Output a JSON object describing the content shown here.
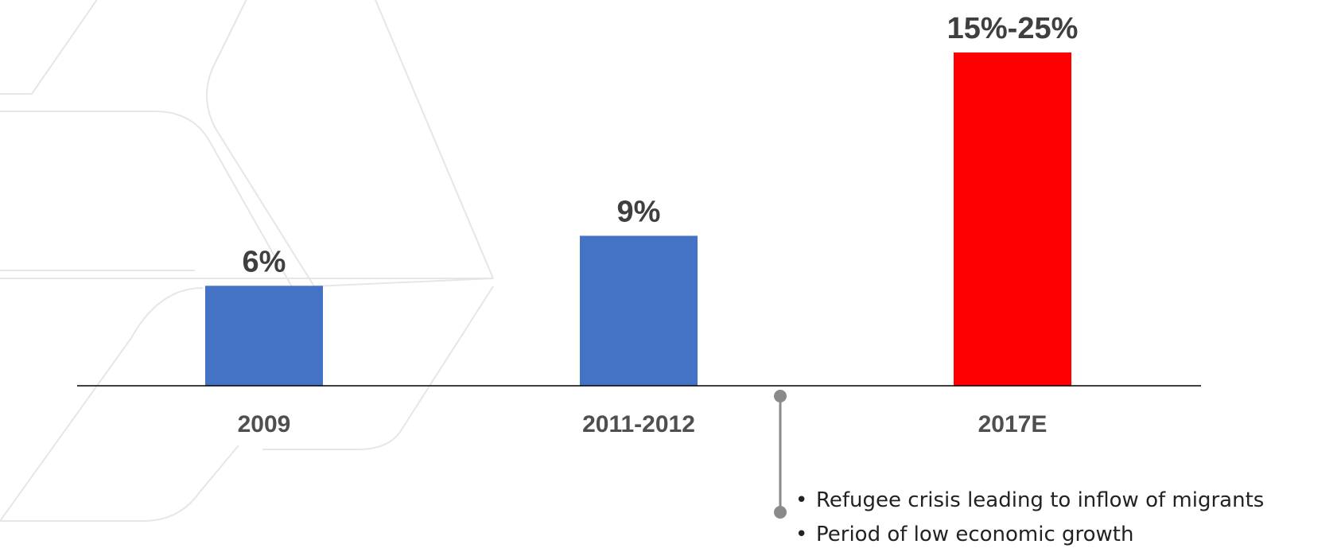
{
  "chart_data": {
    "type": "bar",
    "categories": [
      "2009",
      "2011-2012",
      "2017E"
    ],
    "values": [
      6,
      9,
      20
    ],
    "value_labels": [
      "6%",
      "9%",
      "15%-25%"
    ],
    "colors": [
      "#4472c4",
      "#4472c4",
      "#ff0000"
    ],
    "title": "",
    "xlabel": "",
    "ylabel": "",
    "ylim": [
      0,
      20
    ],
    "grid": false
  },
  "annotation": {
    "bullets": [
      "Refugee crisis leading to inflow of migrants",
      "Period of low economic growth"
    ]
  }
}
